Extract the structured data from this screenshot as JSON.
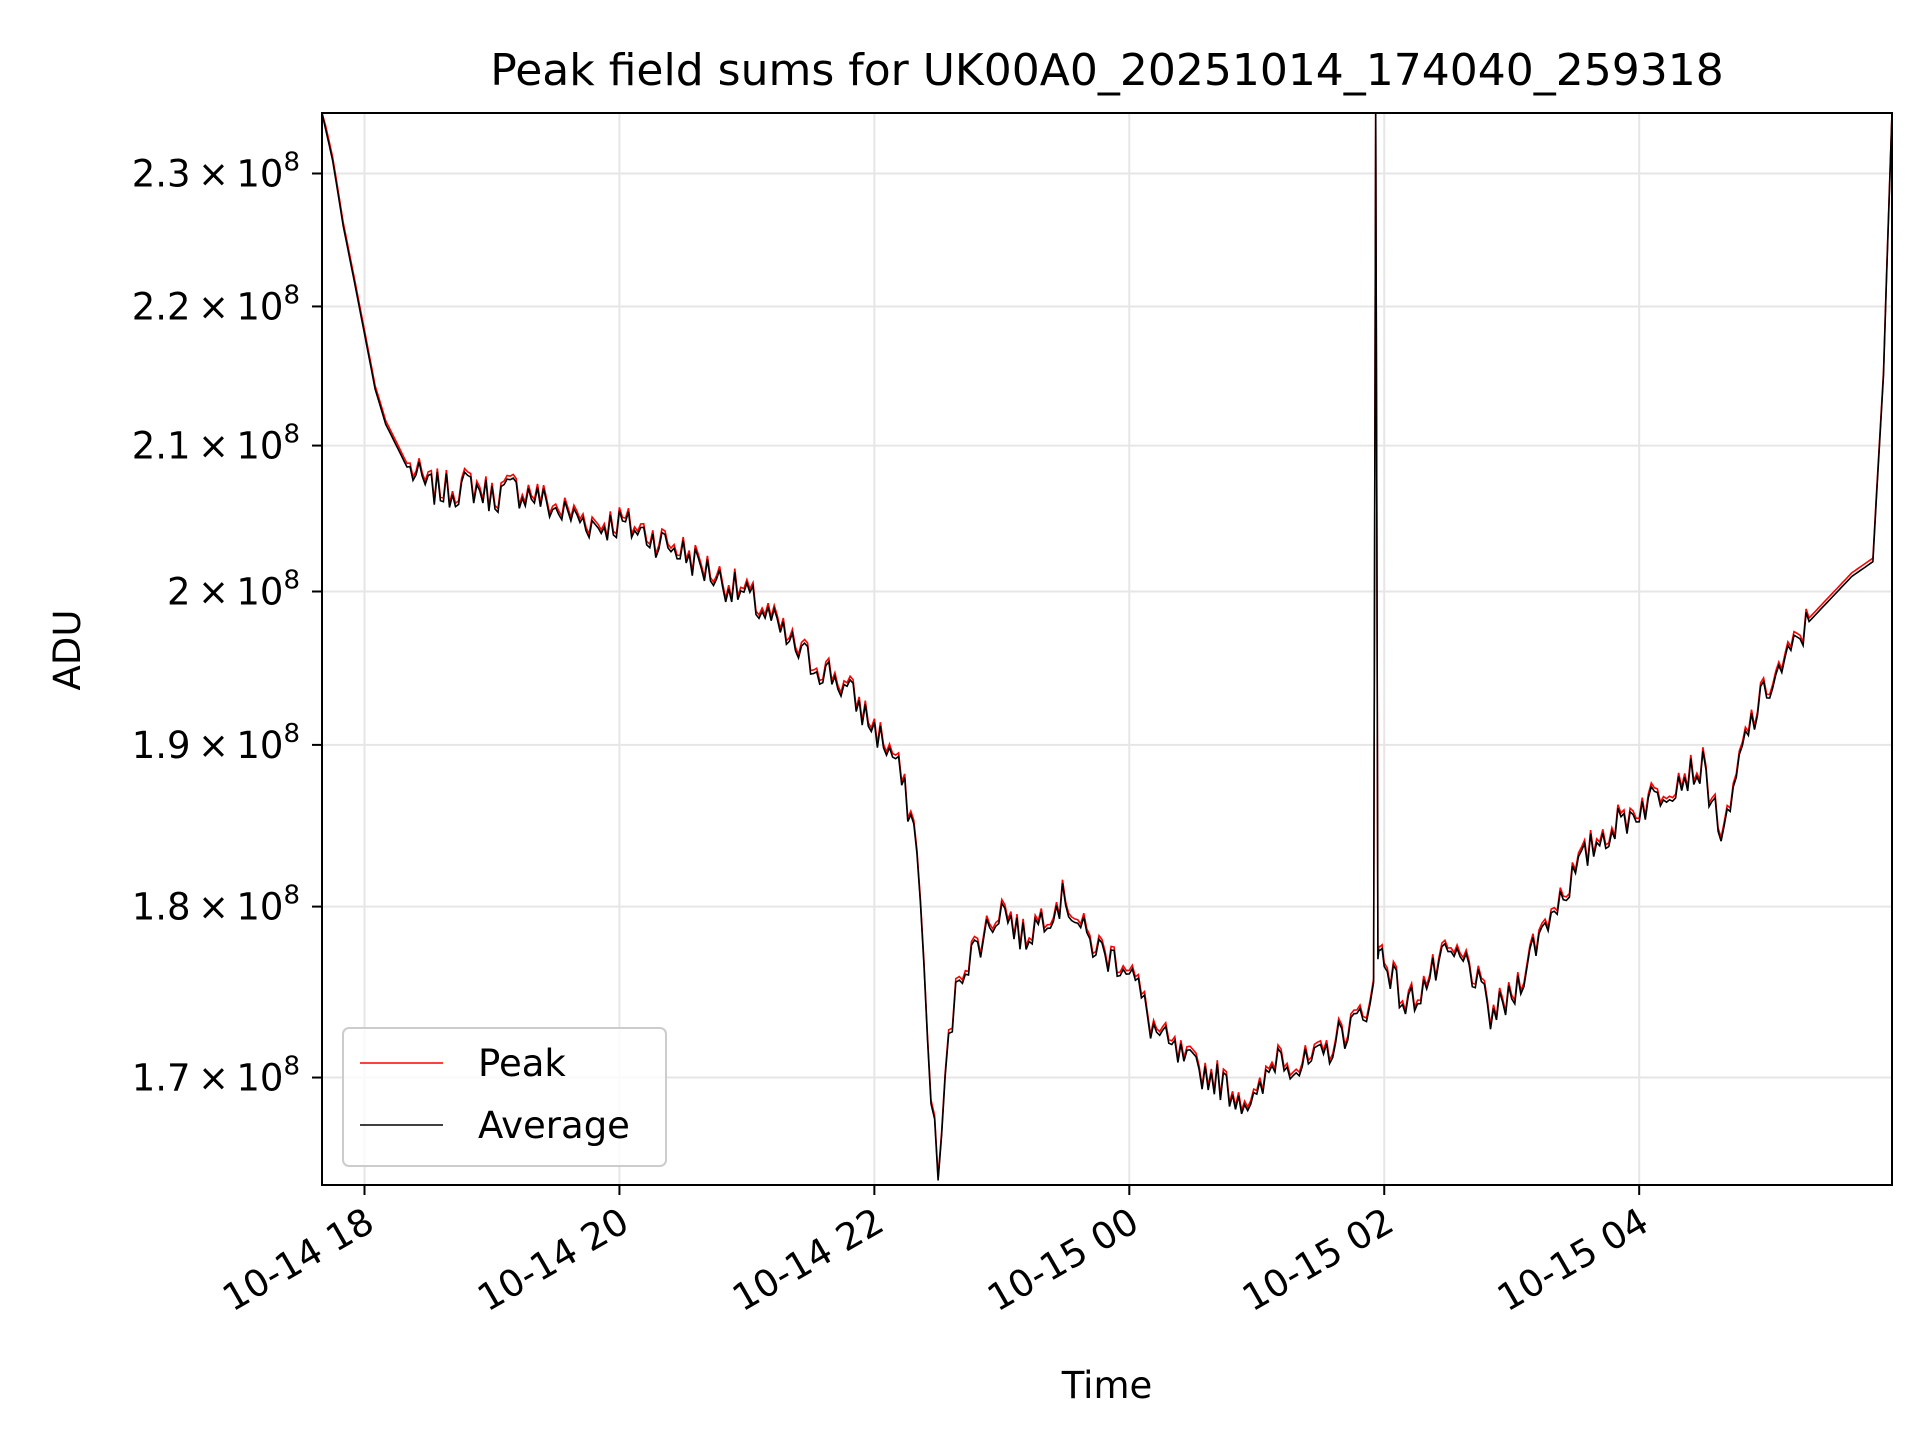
{
  "chart_data": {
    "type": "line",
    "title": "Peak field sums for UK00A0_20251014_174040_259318",
    "xlabel": "Time",
    "ylabel": "ADU",
    "yscale": "log",
    "xlim": [
      "2025-10-14 17:40",
      "2025-10-15 05:59"
    ],
    "ylim": [
      164000000,
      234700000
    ],
    "grid": true,
    "legend_position": "lower-left",
    "x_ticks": [
      {
        "t": "2025-10-14 18:00",
        "label": "10-14 18"
      },
      {
        "t": "2025-10-14 20:00",
        "label": "10-14 20"
      },
      {
        "t": "2025-10-14 22:00",
        "label": "10-14 22"
      },
      {
        "t": "2025-10-15 00:00",
        "label": "10-15 00"
      },
      {
        "t": "2025-10-15 02:00",
        "label": "10-15 02"
      },
      {
        "t": "2025-10-15 04:00",
        "label": "10-15 04"
      }
    ],
    "y_ticks": [
      {
        "value": 170000000,
        "mantissa": "1.7",
        "base": "10",
        "exp": "8"
      },
      {
        "value": 180000000,
        "mantissa": "1.8",
        "base": "10",
        "exp": "8"
      },
      {
        "value": 190000000,
        "mantissa": "1.9",
        "base": "10",
        "exp": "8"
      },
      {
        "value": 200000000,
        "mantissa": "2",
        "base": "10",
        "exp": "8"
      },
      {
        "value": 210000000,
        "mantissa": "2.1",
        "base": "10",
        "exp": "8"
      },
      {
        "value": 220000000,
        "mantissa": "2.2",
        "base": "10",
        "exp": "8"
      },
      {
        "value": 230000000,
        "mantissa": "2.3",
        "base": "10",
        "exp": "8"
      }
    ],
    "series": [
      {
        "name": "Peak",
        "color": "#ff0000"
      },
      {
        "name": "Average",
        "color": "#000000"
      }
    ],
    "x": [
      "17:40",
      "17:45",
      "17:50",
      "17:55",
      "18:00",
      "18:05",
      "18:10",
      "18:20",
      "18:30",
      "18:40",
      "18:50",
      "19:00",
      "19:10",
      "19:20",
      "19:30",
      "19:40",
      "19:50",
      "20:00",
      "20:10",
      "20:20",
      "20:30",
      "20:40",
      "20:50",
      "21:00",
      "21:10",
      "21:20",
      "21:30",
      "21:40",
      "21:50",
      "22:00",
      "22:10",
      "22:20",
      "22:25",
      "22:30",
      "22:35",
      "22:40",
      "22:50",
      "23:00",
      "23:10",
      "23:20",
      "23:30",
      "23:40",
      "23:50",
      "00:00",
      "00:10",
      "00:20",
      "00:30",
      "00:40",
      "00:50",
      "01:00",
      "01:10",
      "01:20",
      "01:30",
      "01:40",
      "01:50",
      "01:55",
      "01:56",
      "01:57",
      "01:58",
      "02:00",
      "02:10",
      "02:20",
      "02:30",
      "02:40",
      "02:50",
      "03:00",
      "03:10",
      "03:20",
      "03:30",
      "03:40",
      "03:50",
      "04:00",
      "04:10",
      "04:20",
      "04:30",
      "04:40",
      "04:50",
      "05:00",
      "05:10",
      "05:20",
      "05:30",
      "05:40",
      "05:50",
      "05:55",
      "05:59"
    ],
    "values_average": [
      234700000,
      231000000,
      226000000,
      222000000,
      218000000,
      214000000,
      211500000,
      208500000,
      207000000,
      206800000,
      207200000,
      206400000,
      206900000,
      206500000,
      205500000,
      205000000,
      204400000,
      204600000,
      204000000,
      203300000,
      202600000,
      201500000,
      200500000,
      199600000,
      198300000,
      196500000,
      195300000,
      194500000,
      193000000,
      191000000,
      189000000,
      184000000,
      172000000,
      164300000,
      172000000,
      176000000,
      178000000,
      180000000,
      178000000,
      179500000,
      180500000,
      178000000,
      177000000,
      176500000,
      173000000,
      171500000,
      170500000,
      170000000,
      169000000,
      168500000,
      171500000,
      170500000,
      171000000,
      172500000,
      173500000,
      175500000,
      234700000,
      176500000,
      177500000,
      177000000,
      174000000,
      175500000,
      177000000,
      176500000,
      173500000,
      174500000,
      177500000,
      180000000,
      182000000,
      184000000,
      185000000,
      186000000,
      187000000,
      188000000,
      188500000,
      184000000,
      190500000,
      193500000,
      195500000,
      198000000,
      199500000,
      201000000,
      202000000,
      215000000,
      234700000
    ],
    "values_peak_offset_fraction": 0.0012
  }
}
